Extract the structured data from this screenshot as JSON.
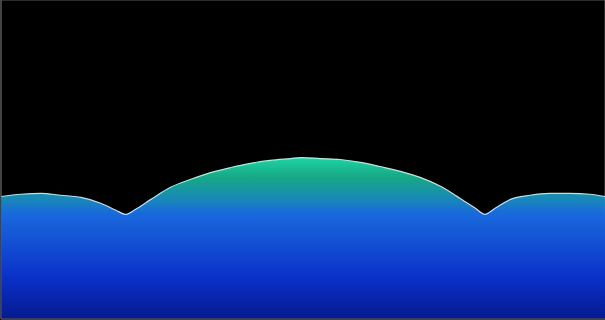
{
  "chart_data": {
    "type": "area",
    "x": [
      -0.7,
      -0.43,
      -0.15,
      0.12,
      0.4,
      0.67,
      0.88,
      1.01,
      1.15,
      1.36,
      1.63,
      1.91,
      2.18,
      2.46,
      2.73,
      3.0,
      3.28,
      3.42,
      3.69,
      3.96,
      4.24,
      4.51,
      4.79,
      5.06,
      5.34,
      5.61,
      5.82,
      5.95,
      6.09,
      6.3,
      6.57,
      6.84,
      7.12,
      7.39,
      7.6
    ],
    "values": [
      3.84,
      3.91,
      3.94,
      3.88,
      3.81,
      3.63,
      3.41,
      3.28,
      3.44,
      3.75,
      4.13,
      4.38,
      4.59,
      4.75,
      4.88,
      4.97,
      5.03,
      5.06,
      5.03,
      5.0,
      4.91,
      4.78,
      4.63,
      4.44,
      4.16,
      3.78,
      3.47,
      3.28,
      3.47,
      3.75,
      3.88,
      3.94,
      3.94,
      3.91,
      3.84
    ],
    "color": "#1ee0b0",
    "xlim": [
      -0.7,
      7.6
    ],
    "xticks": [
      0,
      1,
      2,
      3,
      4,
      5,
      6,
      7
    ],
    "ylim": [
      0,
      10
    ],
    "yticks": [
      0.8,
      1.8,
      2.8,
      3.8,
      4.8,
      5.8,
      6.8,
      7.8,
      8.8,
      9.8
    ],
    "grid": true,
    "tick_labels": false
  }
}
